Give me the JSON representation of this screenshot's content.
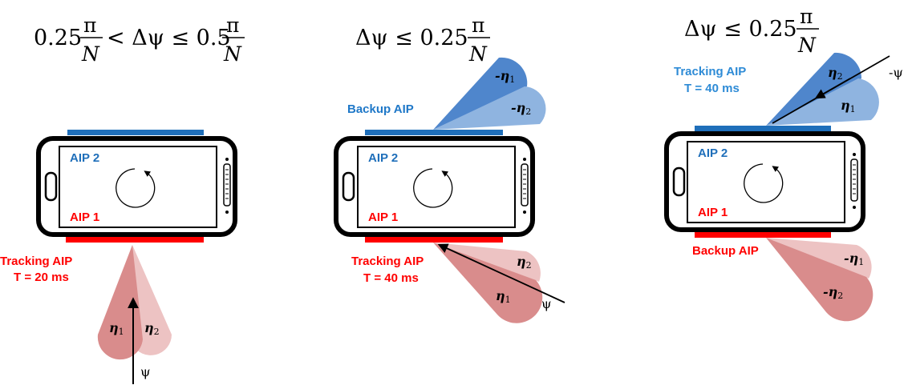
{
  "colors": {
    "top_bar": "#1f6fba",
    "bottom_bar": "#ff0000",
    "aip2_text": "#1f6fba",
    "aip1_text": "#ff0000",
    "tracking_blue_text": "#2e8bd6",
    "backup_blue_text": "#1f78c8",
    "red_text": "#ff0000",
    "beam_red_dark": "#d98c8c",
    "beam_red_light": "#edc3c3",
    "beam_blue_dark": "#4f86cc",
    "beam_blue_light": "#8fb4e0"
  },
  "icons": [
    "rotation-arrow-icon",
    "speaker-grille-icon",
    "home-button-icon"
  ],
  "panels": [
    {
      "title_prefix": "0.25",
      "title_op": "< Δψ ≤ 0.5",
      "title_num1": "π",
      "title_den1": "N",
      "title_num2": "π",
      "title_den2": "N",
      "aip2": "AIP 2",
      "aip1": "AIP 1",
      "tracking_line1": "Tracking AIP",
      "tracking_line2": "T = 20 ms",
      "eta1": "η",
      "eta1_sub": "1",
      "eta2": "η",
      "eta2_sub": "2",
      "psi": "ψ"
    },
    {
      "title_prefix": "Δψ ≤ 0.25",
      "title_num": "π",
      "title_den": "N",
      "aip2": "AIP 2",
      "aip1": "AIP 1",
      "backup": "Backup AIP",
      "tracking_line1": "Tracking AIP",
      "tracking_line2": "T = 40 ms",
      "top_eta1": "-η",
      "top_eta1_sub": "1",
      "top_eta2": "-η",
      "top_eta2_sub": "2",
      "bot_eta2": "η",
      "bot_eta2_sub": "2",
      "bot_eta1": "η",
      "bot_eta1_sub": "1",
      "psi": "ψ"
    },
    {
      "title_prefix": "Δψ ≤ 0.25",
      "title_num": "π",
      "title_den": "N",
      "aip2": "AIP 2",
      "aip1": "AIP 1",
      "tracking_line1": "Tracking AIP",
      "tracking_line2": "T = 40 ms",
      "backup": "Backup AIP",
      "top_eta2": "η",
      "top_eta2_sub": "2",
      "top_eta1": "η",
      "top_eta1_sub": "1",
      "bot_eta1": "-η",
      "bot_eta1_sub": "1",
      "bot_eta2": "-η",
      "bot_eta2_sub": "2",
      "psi": "-ψ"
    }
  ]
}
